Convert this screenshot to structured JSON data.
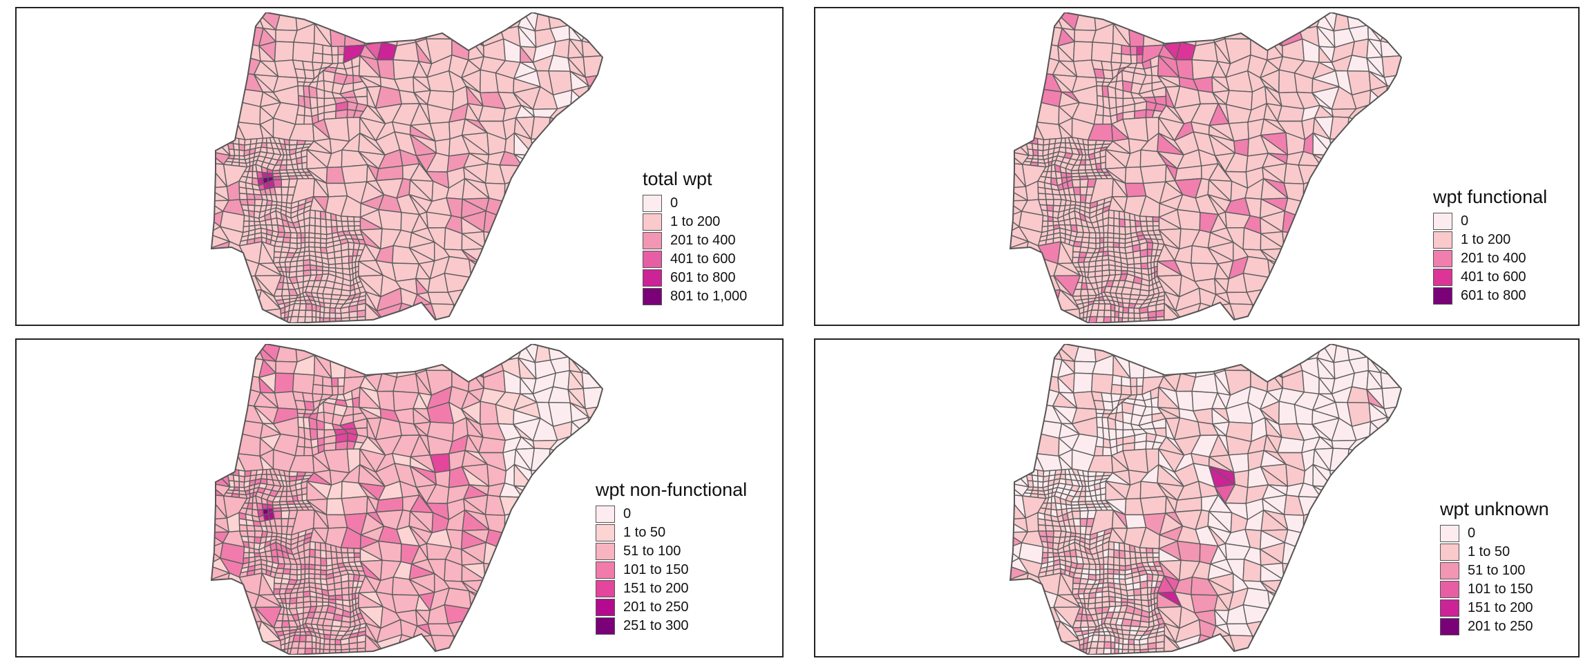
{
  "panels": [
    {
      "id": "total",
      "legend_title": "total wpt",
      "classes": [
        {
          "label": "0",
          "color": "#fdecef"
        },
        {
          "label": "1 to 200",
          "color": "#f9c9cc"
        },
        {
          "label": "201 to 400",
          "color": "#f296b4"
        },
        {
          "label": "401 to 600",
          "color": "#e75ea5"
        },
        {
          "label": "601 to 800",
          "color": "#cc2397"
        },
        {
          "label": "801 to 1,000",
          "color": "#7a0177"
        }
      ]
    },
    {
      "id": "functional",
      "legend_title": "wpt functional",
      "classes": [
        {
          "label": "0",
          "color": "#fdecef"
        },
        {
          "label": "1 to 200",
          "color": "#f9c9cc"
        },
        {
          "label": "201 to 400",
          "color": "#f07fae"
        },
        {
          "label": "401 to 600",
          "color": "#dd3497"
        },
        {
          "label": "601 to 800",
          "color": "#7a0177"
        }
      ]
    },
    {
      "id": "nonfunctional",
      "legend_title": "wpt non-functional",
      "classes": [
        {
          "label": "0",
          "color": "#fdecef"
        },
        {
          "label": "1 to 50",
          "color": "#fbd4d3"
        },
        {
          "label": "51 to 100",
          "color": "#f8b4c0"
        },
        {
          "label": "101 to 150",
          "color": "#f17cab"
        },
        {
          "label": "151 to 200",
          "color": "#e4459d"
        },
        {
          "label": "201 to 250",
          "color": "#b30a90"
        },
        {
          "label": "251 to 300",
          "color": "#7a0177"
        }
      ]
    },
    {
      "id": "unknown",
      "legend_title": "wpt unknown",
      "classes": [
        {
          "label": "0",
          "color": "#fdecef"
        },
        {
          "label": "1 to 50",
          "color": "#f9c9cc"
        },
        {
          "label": "51 to 100",
          "color": "#f296b4"
        },
        {
          "label": "101 to 150",
          "color": "#e75ea5"
        },
        {
          "label": "151 to 200",
          "color": "#cc2397"
        },
        {
          "label": "201 to 250",
          "color": "#7a0177"
        }
      ]
    }
  ]
}
